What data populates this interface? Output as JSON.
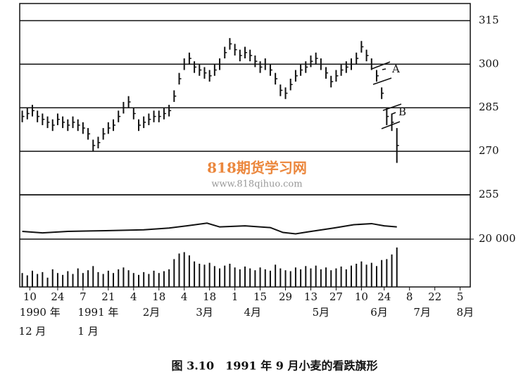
{
  "chart_data": {
    "type": "range-bar",
    "caption": "图 3.10　1991 年 9 月小麦的看跌旗形",
    "watermark": "818期货学习网",
    "watermark_url": "www.818qihuo.com",
    "annotations": [
      "A",
      "B"
    ],
    "xlim": [
      -4,
      174
    ],
    "xticks": [
      {
        "value": 0,
        "label": "10"
      },
      {
        "value": 11,
        "label": "24"
      },
      {
        "value": 21,
        "label": "7"
      },
      {
        "value": 31,
        "label": "21"
      },
      {
        "value": 41,
        "label": "4"
      },
      {
        "value": 51,
        "label": "18"
      },
      {
        "value": 61,
        "label": "4"
      },
      {
        "value": 71,
        "label": "18"
      },
      {
        "value": 81,
        "label": "1"
      },
      {
        "value": 91,
        "label": "15"
      },
      {
        "value": 101,
        "label": "29"
      },
      {
        "value": 111,
        "label": "13"
      },
      {
        "value": 121,
        "label": "27"
      },
      {
        "value": 131,
        "label": "10"
      },
      {
        "value": 140,
        "label": "24"
      },
      {
        "value": 150,
        "label": "8"
      },
      {
        "value": 160,
        "label": "22"
      },
      {
        "value": 170,
        "label": "5"
      }
    ],
    "x_month_labels": [
      {
        "value": 4,
        "label": "1990 年"
      },
      {
        "value": 27,
        "label": "1991 年"
      },
      {
        "value": 48,
        "label": "2月"
      },
      {
        "value": 69,
        "label": "3月"
      },
      {
        "value": 88,
        "label": "4月"
      },
      {
        "value": 115,
        "label": "5月"
      },
      {
        "value": 138,
        "label": "6月"
      },
      {
        "value": 155,
        "label": "7月"
      },
      {
        "value": 172,
        "label": "8月"
      }
    ],
    "x_year_month_labels": [
      {
        "value": 1,
        "label": "12 月"
      },
      {
        "value": 23,
        "label": "1 月"
      }
    ],
    "ylim": [
      255,
      318
    ],
    "yticks": [
      315,
      300,
      285,
      270,
      255
    ],
    "grid": true,
    "color": "#111111",
    "x": [
      -3,
      -1,
      1,
      3,
      5,
      7,
      9,
      11,
      13,
      15,
      17,
      19,
      21,
      23,
      25,
      27,
      29,
      31,
      33,
      35,
      37,
      39,
      41,
      43,
      45,
      47,
      49,
      51,
      53,
      55,
      57,
      59,
      61,
      63,
      65,
      67,
      69,
      71,
      73,
      75,
      77,
      79,
      81,
      83,
      85,
      87,
      89,
      91,
      93,
      95,
      97,
      99,
      101,
      103,
      105,
      107,
      109,
      111,
      113,
      115,
      117,
      119,
      121,
      123,
      125,
      127,
      129,
      131,
      133,
      135,
      137,
      139,
      141,
      143,
      145
    ],
    "high": [
      284,
      285,
      286,
      284,
      283,
      282,
      281,
      283,
      282,
      281,
      282,
      281,
      280,
      278,
      274,
      275,
      278,
      280,
      281,
      284,
      287,
      289,
      285,
      281,
      282,
      283,
      284,
      284,
      285,
      286,
      291,
      297,
      302,
      304,
      301,
      300,
      299,
      298,
      300,
      302,
      306,
      309,
      307,
      305,
      306,
      305,
      303,
      301,
      302,
      300,
      297,
      293,
      292,
      295,
      298,
      300,
      301,
      303,
      304,
      302,
      299,
      296,
      298,
      300,
      301,
      302,
      304,
      308,
      305,
      302,
      298,
      292,
      285,
      283,
      278
    ],
    "low": [
      280,
      281,
      282,
      280,
      279,
      278,
      277,
      279,
      278,
      277,
      278,
      277,
      276,
      274,
      270,
      271,
      274,
      276,
      277,
      280,
      283,
      285,
      281,
      277,
      278,
      279,
      280,
      280,
      281,
      282,
      287,
      293,
      298,
      300,
      297,
      296,
      295,
      294,
      296,
      298,
      302,
      305,
      303,
      301,
      302,
      301,
      299,
      297,
      298,
      296,
      293,
      289,
      288,
      291,
      294,
      296,
      297,
      299,
      300,
      298,
      295,
      292,
      294,
      296,
      297,
      298,
      300,
      304,
      301,
      298,
      294,
      288,
      279,
      277,
      266
    ],
    "open_interest": {
      "x": [
        -3,
        5,
        15,
        30,
        45,
        55,
        62,
        70,
        75,
        85,
        95,
        100,
        105,
        110,
        120,
        128,
        135,
        140,
        145
      ],
      "values": [
        23500,
        22800,
        23500,
        23800,
        24200,
        25000,
        26000,
        27200,
        25500,
        26000,
        25200,
        23000,
        22400,
        23300,
        25000,
        26500,
        27000,
        26000,
        25500
      ],
      "ylim": [
        20000,
        40000
      ],
      "yticks": [
        {
          "value": 20000,
          "label": "20 000"
        }
      ]
    },
    "volume": {
      "values": [
        30,
        25,
        35,
        28,
        32,
        20,
        38,
        30,
        26,
        34,
        28,
        40,
        30,
        36,
        45,
        32,
        28,
        35,
        30,
        38,
        42,
        36,
        30,
        26,
        32,
        28,
        35,
        30,
        34,
        38,
        60,
        72,
        75,
        68,
        55,
        50,
        48,
        52,
        45,
        40,
        46,
        50,
        42,
        38,
        44,
        40,
        36,
        42,
        38,
        35,
        48,
        40,
        36,
        34,
        42,
        38,
        45,
        40,
        46,
        38,
        42,
        36,
        40,
        44,
        38,
        46,
        50,
        55,
        48,
        52,
        45,
        58,
        60,
        70,
        85
      ],
      "ylim": [
        0,
        100
      ]
    }
  }
}
